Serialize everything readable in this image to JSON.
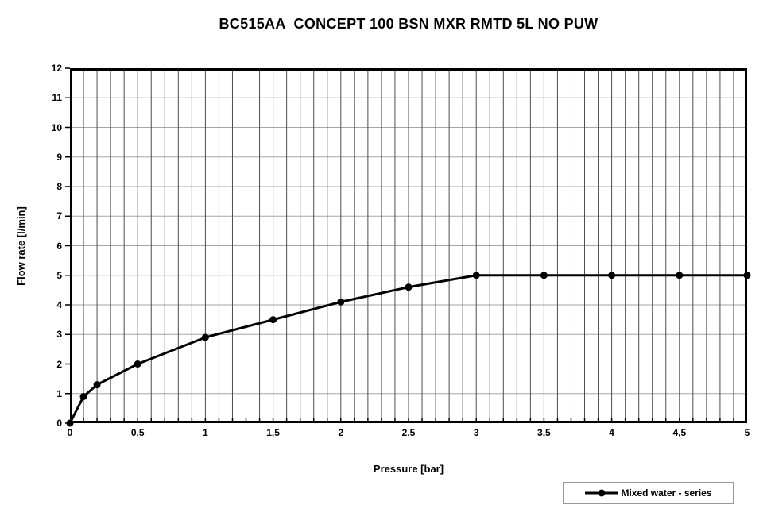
{
  "chart_data": {
    "type": "line",
    "title": "BC515AA  CONCEPT 100 BSN MXR RMTD 5L NO PUW",
    "xlabel": "Pressure [bar]",
    "ylabel": "Flow rate [l/min]",
    "xlim": [
      0,
      5
    ],
    "ylim": [
      0,
      12
    ],
    "x_tick_values": [
      0,
      0.5,
      1,
      1.5,
      2,
      2.5,
      3,
      3.5,
      4,
      4.5,
      5
    ],
    "x_tick_labels": [
      "0",
      "0,5",
      "1",
      "1,5",
      "2",
      "2,5",
      "3",
      "3,5",
      "4",
      "4,5",
      "5"
    ],
    "y_tick_values": [
      0,
      1,
      2,
      3,
      4,
      5,
      6,
      7,
      8,
      9,
      10,
      11,
      12
    ],
    "y_tick_labels": [
      "0",
      "1",
      "2",
      "3",
      "4",
      "5",
      "6",
      "7",
      "8",
      "9",
      "10",
      "11",
      "12"
    ],
    "x_minor_grid_step": 0.1,
    "y_major_grid_step": 1,
    "grid": true,
    "legend": {
      "label": "Mixed water - series",
      "position": "bottom-right"
    },
    "series": [
      {
        "name": "Mixed water - series",
        "marker": "circle",
        "color": "#000000",
        "points": [
          [
            0,
            0
          ],
          [
            0.1,
            0.9
          ],
          [
            0.2,
            1.3
          ],
          [
            0.5,
            2.0
          ],
          [
            1.0,
            2.9
          ],
          [
            1.5,
            3.5
          ],
          [
            2.0,
            4.1
          ],
          [
            2.5,
            4.6
          ],
          [
            3.0,
            5.0
          ],
          [
            3.5,
            5.0
          ],
          [
            4.0,
            5.0
          ],
          [
            4.5,
            5.0
          ],
          [
            5.0,
            5.0
          ]
        ]
      }
    ],
    "colors": {
      "line": "#000000",
      "marker": "#000000",
      "frame": "#000000",
      "tick": "#000000",
      "grid_vertical": "#4d4d4d",
      "grid_horizontal": "#a6a6a6",
      "legend_border": "#999999",
      "text": "#000000",
      "background": "#ffffff"
    }
  }
}
